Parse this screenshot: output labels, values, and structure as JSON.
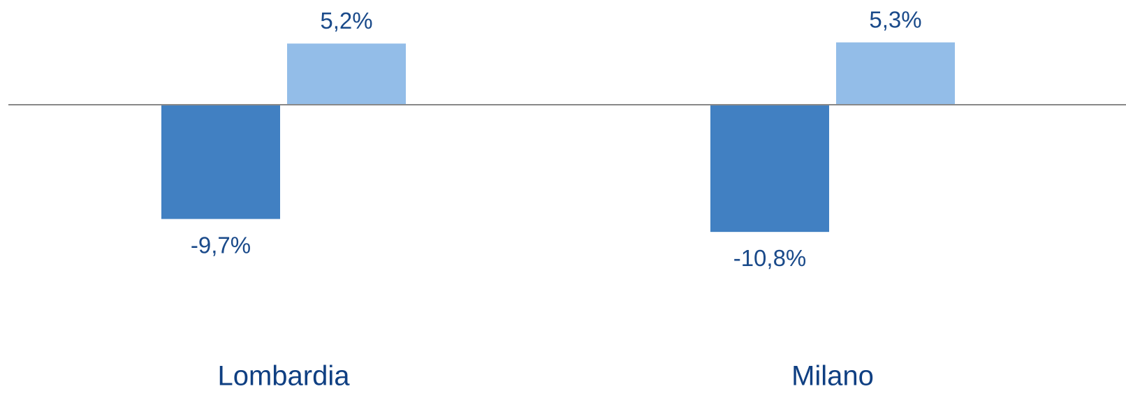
{
  "chart_data": {
    "type": "bar",
    "categories": [
      "Lombardia",
      "Milano"
    ],
    "series": [
      {
        "color": "#4180c2",
        "values": [
          -9.7,
          -10.8
        ],
        "value_labels": [
          "-9,7%",
          "-10,8%"
        ]
      },
      {
        "color": "#93bde8",
        "values": [
          5.2,
          5.3
        ],
        "value_labels": [
          "5,2%",
          "5,3%"
        ]
      }
    ],
    "ylim": [
      -25.5,
      8.9
    ]
  }
}
